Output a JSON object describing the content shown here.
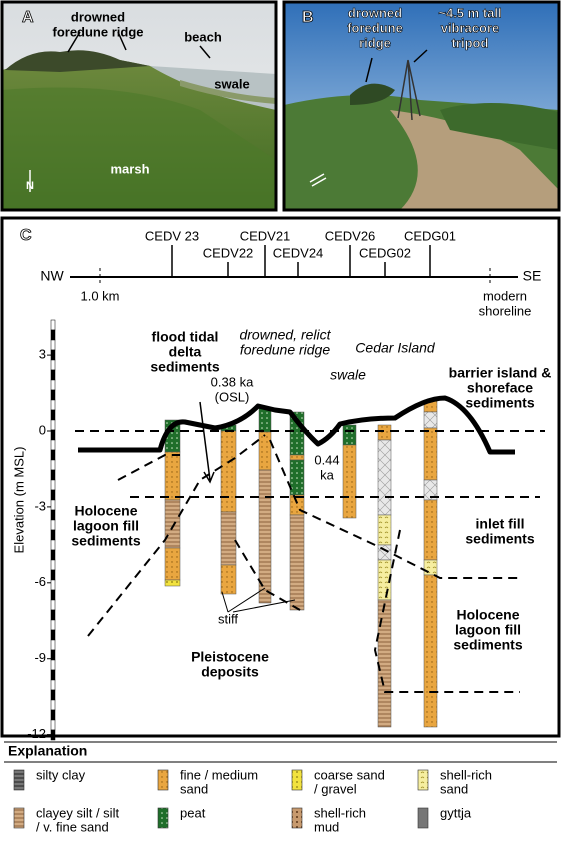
{
  "panel_a": {
    "label": "A",
    "annotations": {
      "ridge": [
        "drowned",
        "foredune ridge"
      ],
      "beach": [
        "beach"
      ],
      "swale": [
        "swale"
      ],
      "marsh": [
        "marsh"
      ],
      "north": [
        "N"
      ]
    }
  },
  "panel_b": {
    "label": "B",
    "annotations": {
      "ridge": [
        "drowned",
        "foredune",
        "ridge"
      ],
      "tripod": [
        "~4.5 m tall",
        "vibracore",
        "tripod"
      ]
    }
  },
  "panel_c": {
    "label": "C",
    "cores": [
      "CEDV 23",
      "CEDV22",
      "CEDV21",
      "CEDV24",
      "CEDV26",
      "CEDG02",
      "CEDG01"
    ],
    "direction": [
      "NW",
      "SE"
    ],
    "scale": "1.0 km",
    "shoreline": [
      "modern",
      "shoreline"
    ],
    "y_axis": {
      "label": "Elevation (m MSL)",
      "ticks": [
        3,
        0,
        -3,
        -6,
        -9,
        -12
      ]
    },
    "annotations": {
      "flood": [
        "flood tidal",
        "delta",
        "sediments"
      ],
      "ridge": [
        "drowned, relict",
        "foredune ridge"
      ],
      "cedar": [
        "Cedar Island"
      ],
      "swale": [
        "swale"
      ],
      "barrier": [
        "barrier island &",
        "shoreface",
        "sediments"
      ],
      "osl": [
        "0.38 ka",
        "(OSL)"
      ],
      "ka": [
        "0.44",
        "ka"
      ],
      "lagoon_w": [
        "Holocene",
        "lagoon fill",
        "sediments"
      ],
      "inlet": [
        "inlet fill",
        "sediments"
      ],
      "lagoon_e": [
        "Holocene",
        "lagoon fill",
        "sediments"
      ],
      "stiff": [
        "stiff"
      ],
      "pleistocene": [
        "Pleistocene",
        "deposits"
      ]
    }
  },
  "explanation": {
    "title": "Explanation",
    "items": [
      [
        "silty clay"
      ],
      [
        "clayey silt / silt",
        "/ v. fine sand"
      ],
      [
        "fine / medium",
        "sand"
      ],
      [
        "peat"
      ],
      [
        "coarse sand",
        "/ gravel"
      ],
      [
        "shell-rich",
        "mud"
      ],
      [
        "shell-rich",
        "sand"
      ],
      [
        "gyttja"
      ]
    ]
  }
}
